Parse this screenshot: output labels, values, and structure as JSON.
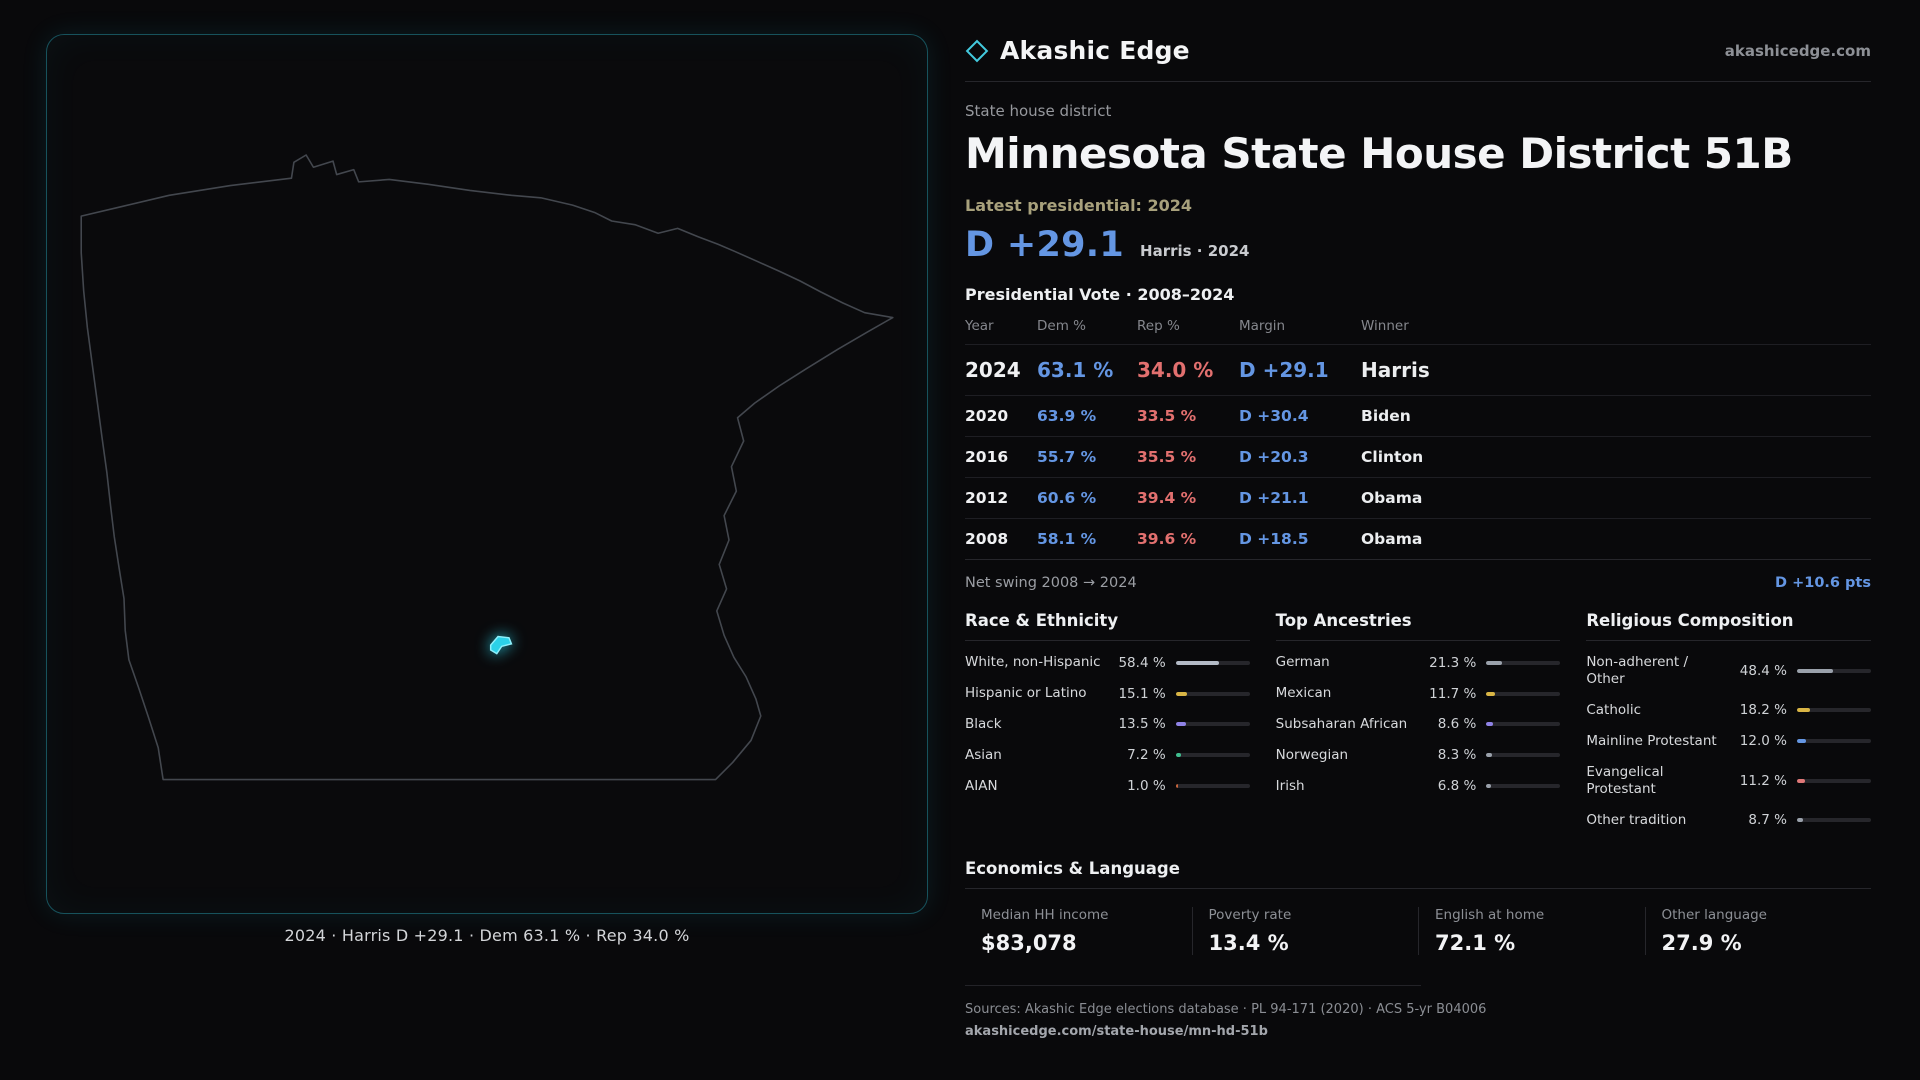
{
  "site": {
    "brand": "Akashic Edge",
    "domain": "akashicedge.com"
  },
  "colors": {
    "dem": "#6496e3",
    "rep": "#e2706f",
    "accent_cyan": "#2bd1e8",
    "gold": "#a8a17c"
  },
  "map": {
    "caption": "2024 · Harris D +29.1 · Dem 63.1 % · Rep 34.0 %"
  },
  "header": {
    "kicker": "State house district",
    "title": "Minnesota State House District 51B",
    "latest_label": "Latest presidential: 2024",
    "headline_margin": "D +29.1",
    "headline_detail": "Harris · 2024"
  },
  "vote_table": {
    "title": "Presidential Vote · 2008–2024",
    "columns": [
      "Year",
      "Dem %",
      "Rep %",
      "Margin",
      "Winner"
    ],
    "rows": [
      {
        "year": "2024",
        "dem": "63.1 %",
        "rep": "34.0 %",
        "margin": "D +29.1",
        "winner": "Harris",
        "emphasis": true
      },
      {
        "year": "2020",
        "dem": "63.9 %",
        "rep": "33.5 %",
        "margin": "D +30.4",
        "winner": "Biden",
        "emphasis": false
      },
      {
        "year": "2016",
        "dem": "55.7 %",
        "rep": "35.5 %",
        "margin": "D +20.3",
        "winner": "Clinton",
        "emphasis": false
      },
      {
        "year": "2012",
        "dem": "60.6 %",
        "rep": "39.4 %",
        "margin": "D +21.1",
        "winner": "Obama",
        "emphasis": false
      },
      {
        "year": "2008",
        "dem": "58.1 %",
        "rep": "39.6 %",
        "margin": "D +18.5",
        "winner": "Obama",
        "emphasis": false
      }
    ],
    "net_swing_label": "Net swing 2008 → 2024",
    "net_swing_value": "D +10.6 pts"
  },
  "demographics": {
    "race": {
      "title": "Race & Ethnicity",
      "rows": [
        {
          "label": "White, non-Hispanic",
          "value": "58.4 %",
          "pct": 58.4,
          "color": "#b3bac6"
        },
        {
          "label": "Hispanic or Latino",
          "value": "15.1 %",
          "pct": 15.1,
          "color": "#d9b545"
        },
        {
          "label": "Black",
          "value": "13.5 %",
          "pct": 13.5,
          "color": "#8f82e6"
        },
        {
          "label": "Asian",
          "value": "7.2 %",
          "pct": 7.2,
          "color": "#3fbf8f"
        },
        {
          "label": "AIAN",
          "value": "1.0 %",
          "pct": 1.0,
          "color": "#c9653c"
        }
      ]
    },
    "ancestries": {
      "title": "Top Ancestries",
      "rows": [
        {
          "label": "German",
          "value": "21.3 %",
          "pct": 21.3,
          "color": "#9aa1ab"
        },
        {
          "label": "Mexican",
          "value": "11.7 %",
          "pct": 11.7,
          "color": "#d9b545"
        },
        {
          "label": "Subsaharan African",
          "value": "8.6 %",
          "pct": 8.6,
          "color": "#8f82e6"
        },
        {
          "label": "Norwegian",
          "value": "8.3 %",
          "pct": 8.3,
          "color": "#9aa1ab"
        },
        {
          "label": "Irish",
          "value": "6.8 %",
          "pct": 6.8,
          "color": "#9aa1ab"
        }
      ]
    },
    "religion": {
      "title": "Religious Composition",
      "rows": [
        {
          "label": "Non-adherent / Other",
          "value": "48.4 %",
          "pct": 48.4,
          "color": "#9aa1ab"
        },
        {
          "label": "Catholic",
          "value": "18.2 %",
          "pct": 18.2,
          "color": "#d9b545"
        },
        {
          "label": "Mainline Protestant",
          "value": "12.0 %",
          "pct": 12.0,
          "color": "#6496e3"
        },
        {
          "label": "Evangelical Protestant",
          "value": "11.2 %",
          "pct": 11.2,
          "color": "#e07878"
        },
        {
          "label": "Other tradition",
          "value": "8.7 %",
          "pct": 8.7,
          "color": "#9aa1ab"
        }
      ]
    }
  },
  "economics": {
    "title": "Economics & Language",
    "stats": [
      {
        "label": "Median HH income",
        "value": "$83,078"
      },
      {
        "label": "Poverty rate",
        "value": "13.4 %"
      },
      {
        "label": "English at home",
        "value": "72.1 %"
      },
      {
        "label": "Other language",
        "value": "27.9 %"
      }
    ]
  },
  "footer": {
    "sources": "Sources: Akashic Edge elections database · PL 94-171 (2020) · ACS 5-yr B04006",
    "permalink": "akashicedge.com/state-house/mn-hd-51b"
  }
}
